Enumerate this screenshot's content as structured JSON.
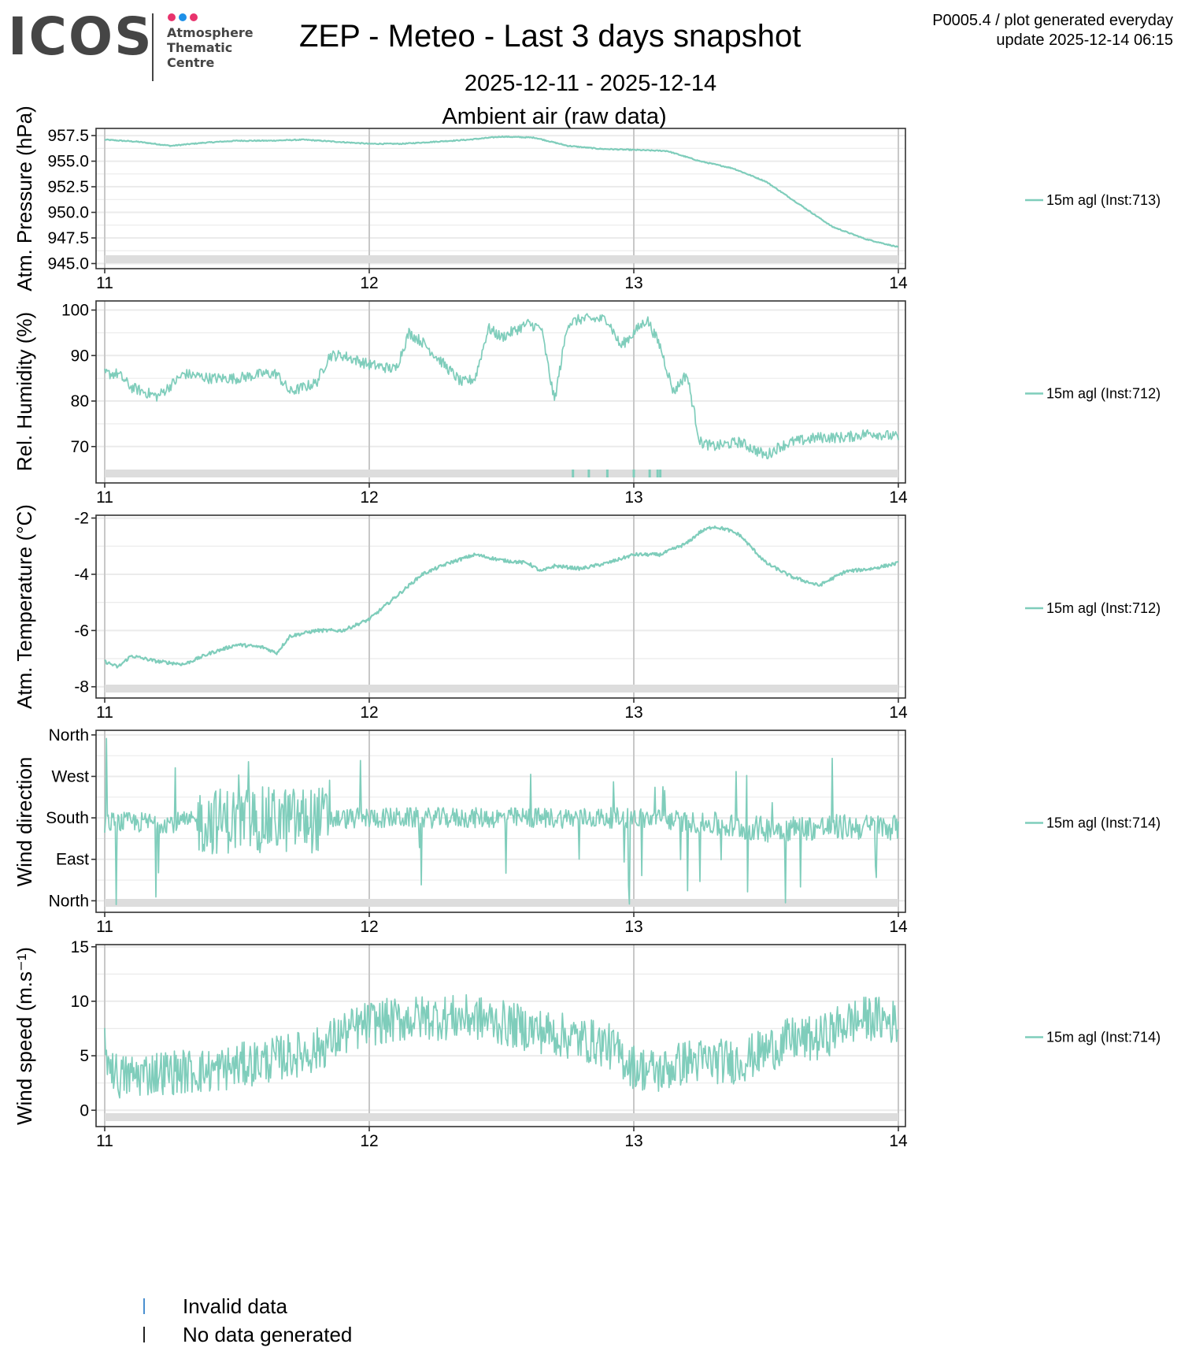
{
  "logo": {
    "text": "ICOS",
    "subtitle_lines": [
      "Atmosphere",
      "Thematic",
      "Centre"
    ],
    "dot_colors": [
      "#e8336d",
      "#1e90e8",
      "#e8336d"
    ]
  },
  "header": {
    "title": "ZEP - Meteo - Last 3 days snapshot",
    "date_range": "2025-12-11 - 2025-12-14",
    "section": "Ambient air (raw data)",
    "meta_line1": "P0005.4 / plot generated everyday",
    "meta_line2": "update  2025-12-14 06:15"
  },
  "colors": {
    "series": "#7fcdbb",
    "invalid": "#4a8fd0",
    "no_data": "#222222",
    "no_data_strip": "#dddddd",
    "grid": "#ebebeb",
    "day_grid": "#c8c8c8"
  },
  "bottom_legend": {
    "invalid_label": "Invalid data",
    "nodata_label": "No data generated"
  },
  "chart_data": [
    {
      "type": "line",
      "id": "pressure",
      "ylabel": "Atm. Pressure (hPa)",
      "xlim": [
        11,
        14
      ],
      "x_ticks": [
        "11",
        "12",
        "13",
        "14"
      ],
      "ylim": [
        944.5,
        958.2
      ],
      "y_ticks": [
        957.5,
        955.0,
        952.5,
        950.0,
        947.5,
        945.0
      ],
      "y_tick_labels": [
        "957.5",
        "955.0",
        "952.5",
        "950.0",
        "947.5",
        "945.0"
      ],
      "legend": "15m agl (Inst:713)",
      "noise": 0.05,
      "x": [
        11.0,
        11.125,
        11.25,
        11.375,
        11.5,
        11.625,
        11.75,
        11.875,
        12.0,
        12.125,
        12.25,
        12.375,
        12.5,
        12.625,
        12.75,
        12.875,
        13.0,
        13.125,
        13.25,
        13.375,
        13.5,
        13.625,
        13.75,
        13.875,
        14.0
      ],
      "y": [
        957.1,
        956.9,
        956.5,
        956.8,
        957.0,
        957.0,
        957.1,
        956.9,
        956.7,
        956.7,
        956.9,
        957.1,
        957.4,
        957.3,
        956.5,
        956.2,
        956.1,
        956.0,
        955.0,
        954.3,
        953.0,
        950.8,
        948.6,
        947.4,
        946.6
      ],
      "invalid_x": []
    },
    {
      "type": "line",
      "id": "humidity",
      "ylabel": "Rel. Humidity (%)",
      "xlim": [
        11,
        14
      ],
      "x_ticks": [
        "11",
        "12",
        "13",
        "14"
      ],
      "ylim": [
        62,
        102
      ],
      "y_ticks": [
        100,
        90,
        80,
        70
      ],
      "y_tick_labels": [
        "100",
        "90",
        "80",
        "70"
      ],
      "legend": "15m agl (Inst:712)",
      "noise": 1.2,
      "x": [
        11.0,
        11.05,
        11.1,
        11.2,
        11.3,
        11.4,
        11.5,
        11.6,
        11.65,
        11.7,
        11.8,
        11.85,
        11.9,
        12.0,
        12.1,
        12.15,
        12.2,
        12.3,
        12.35,
        12.4,
        12.45,
        12.5,
        12.6,
        12.65,
        12.7,
        12.75,
        12.8,
        12.9,
        12.95,
        13.0,
        13.05,
        13.1,
        13.15,
        13.2,
        13.25,
        13.3,
        13.4,
        13.5,
        13.55,
        13.6,
        13.7,
        13.8,
        13.9,
        14.0
      ],
      "y": [
        86,
        86,
        83,
        81,
        86,
        85,
        85,
        86,
        86,
        82,
        84,
        90,
        90,
        88,
        87,
        95,
        93,
        87,
        84,
        85,
        96,
        94,
        97,
        96,
        80,
        97,
        98,
        98,
        92,
        95,
        98,
        92,
        82,
        86,
        71,
        70,
        71,
        68,
        70,
        71,
        72,
        72,
        73,
        72
      ],
      "invalid_x": [
        12.77,
        12.83,
        12.9,
        13.0,
        13.06,
        13.09,
        13.1
      ]
    },
    {
      "type": "line",
      "id": "temperature",
      "ylabel": "Atm. Temperature (°C)",
      "xlim": [
        11,
        14
      ],
      "x_ticks": [
        "11",
        "12",
        "13",
        "14"
      ],
      "ylim": [
        -8.4,
        -1.9
      ],
      "y_ticks": [
        -2,
        -4,
        -6,
        -8
      ],
      "y_tick_labels": [
        "-2",
        "-4",
        "-6",
        "-8"
      ],
      "legend": "15m agl (Inst:712)",
      "noise": 0.06,
      "x": [
        11.0,
        11.05,
        11.1,
        11.2,
        11.3,
        11.4,
        11.5,
        11.6,
        11.65,
        11.7,
        11.8,
        11.9,
        12.0,
        12.05,
        12.1,
        12.15,
        12.2,
        12.3,
        12.4,
        12.5,
        12.6,
        12.65,
        12.7,
        12.8,
        12.9,
        13.0,
        13.1,
        13.15,
        13.2,
        13.25,
        13.3,
        13.35,
        13.4,
        13.5,
        13.6,
        13.7,
        13.8,
        13.9,
        14.0
      ],
      "y": [
        -7.1,
        -7.3,
        -6.9,
        -7.1,
        -7.2,
        -6.8,
        -6.5,
        -6.6,
        -6.8,
        -6.2,
        -6.0,
        -6.0,
        -5.6,
        -5.2,
        -4.8,
        -4.4,
        -4.0,
        -3.6,
        -3.3,
        -3.5,
        -3.6,
        -3.9,
        -3.7,
        -3.8,
        -3.6,
        -3.3,
        -3.3,
        -3.1,
        -2.9,
        -2.5,
        -2.3,
        -2.4,
        -2.6,
        -3.6,
        -4.1,
        -4.4,
        -3.9,
        -3.8,
        -3.6
      ],
      "invalid_x": []
    },
    {
      "type": "line",
      "id": "wind_direction",
      "ylabel": "Wind direction",
      "xlim": [
        11,
        14
      ],
      "x_ticks": [
        "11",
        "12",
        "13",
        "14"
      ],
      "ylim": [
        -25,
        370
      ],
      "y_ticks": [
        360,
        270,
        180,
        90,
        0
      ],
      "y_tick_labels": [
        "North",
        "West",
        "South",
        "East",
        "North"
      ],
      "legend": "15m agl (Inst:714)",
      "noise": 28,
      "x": [
        11.0,
        11.25,
        11.5,
        11.7,
        11.9,
        12.0,
        12.25,
        12.5,
        12.75,
        13.0,
        13.15,
        13.3,
        13.5,
        13.75,
        14.0
      ],
      "y": [
        170,
        170,
        175,
        175,
        178,
        180,
        180,
        180,
        180,
        180,
        175,
        165,
        155,
        160,
        160
      ],
      "invalid_x": []
    },
    {
      "type": "line",
      "id": "wind_speed",
      "ylabel": "Wind speed (m.s⁻¹)",
      "xlim": [
        11,
        14
      ],
      "x_ticks": [
        "11",
        "12",
        "13",
        "14"
      ],
      "ylim": [
        -1.5,
        15.2
      ],
      "y_ticks": [
        15,
        10,
        5,
        0
      ],
      "y_tick_labels": [
        "15",
        "10",
        "5",
        "0"
      ],
      "legend": "15m agl (Inst:714)",
      "noise": 1.5,
      "x": [
        11.0,
        11.05,
        11.2,
        11.4,
        11.6,
        11.8,
        11.9,
        12.0,
        12.2,
        12.4,
        12.6,
        12.8,
        12.9,
        13.0,
        13.1,
        13.2,
        13.4,
        13.5,
        13.6,
        13.7,
        13.8,
        13.9,
        14.0
      ],
      "y": [
        5.5,
        3.0,
        3.5,
        3.6,
        4.5,
        5.5,
        7.0,
        8.0,
        8.5,
        8.5,
        7.5,
        6.5,
        6.0,
        4.0,
        3.5,
        4.5,
        4.5,
        5.5,
        6.5,
        6.5,
        8.0,
        8.5,
        8.0
      ],
      "invalid_x": []
    }
  ]
}
